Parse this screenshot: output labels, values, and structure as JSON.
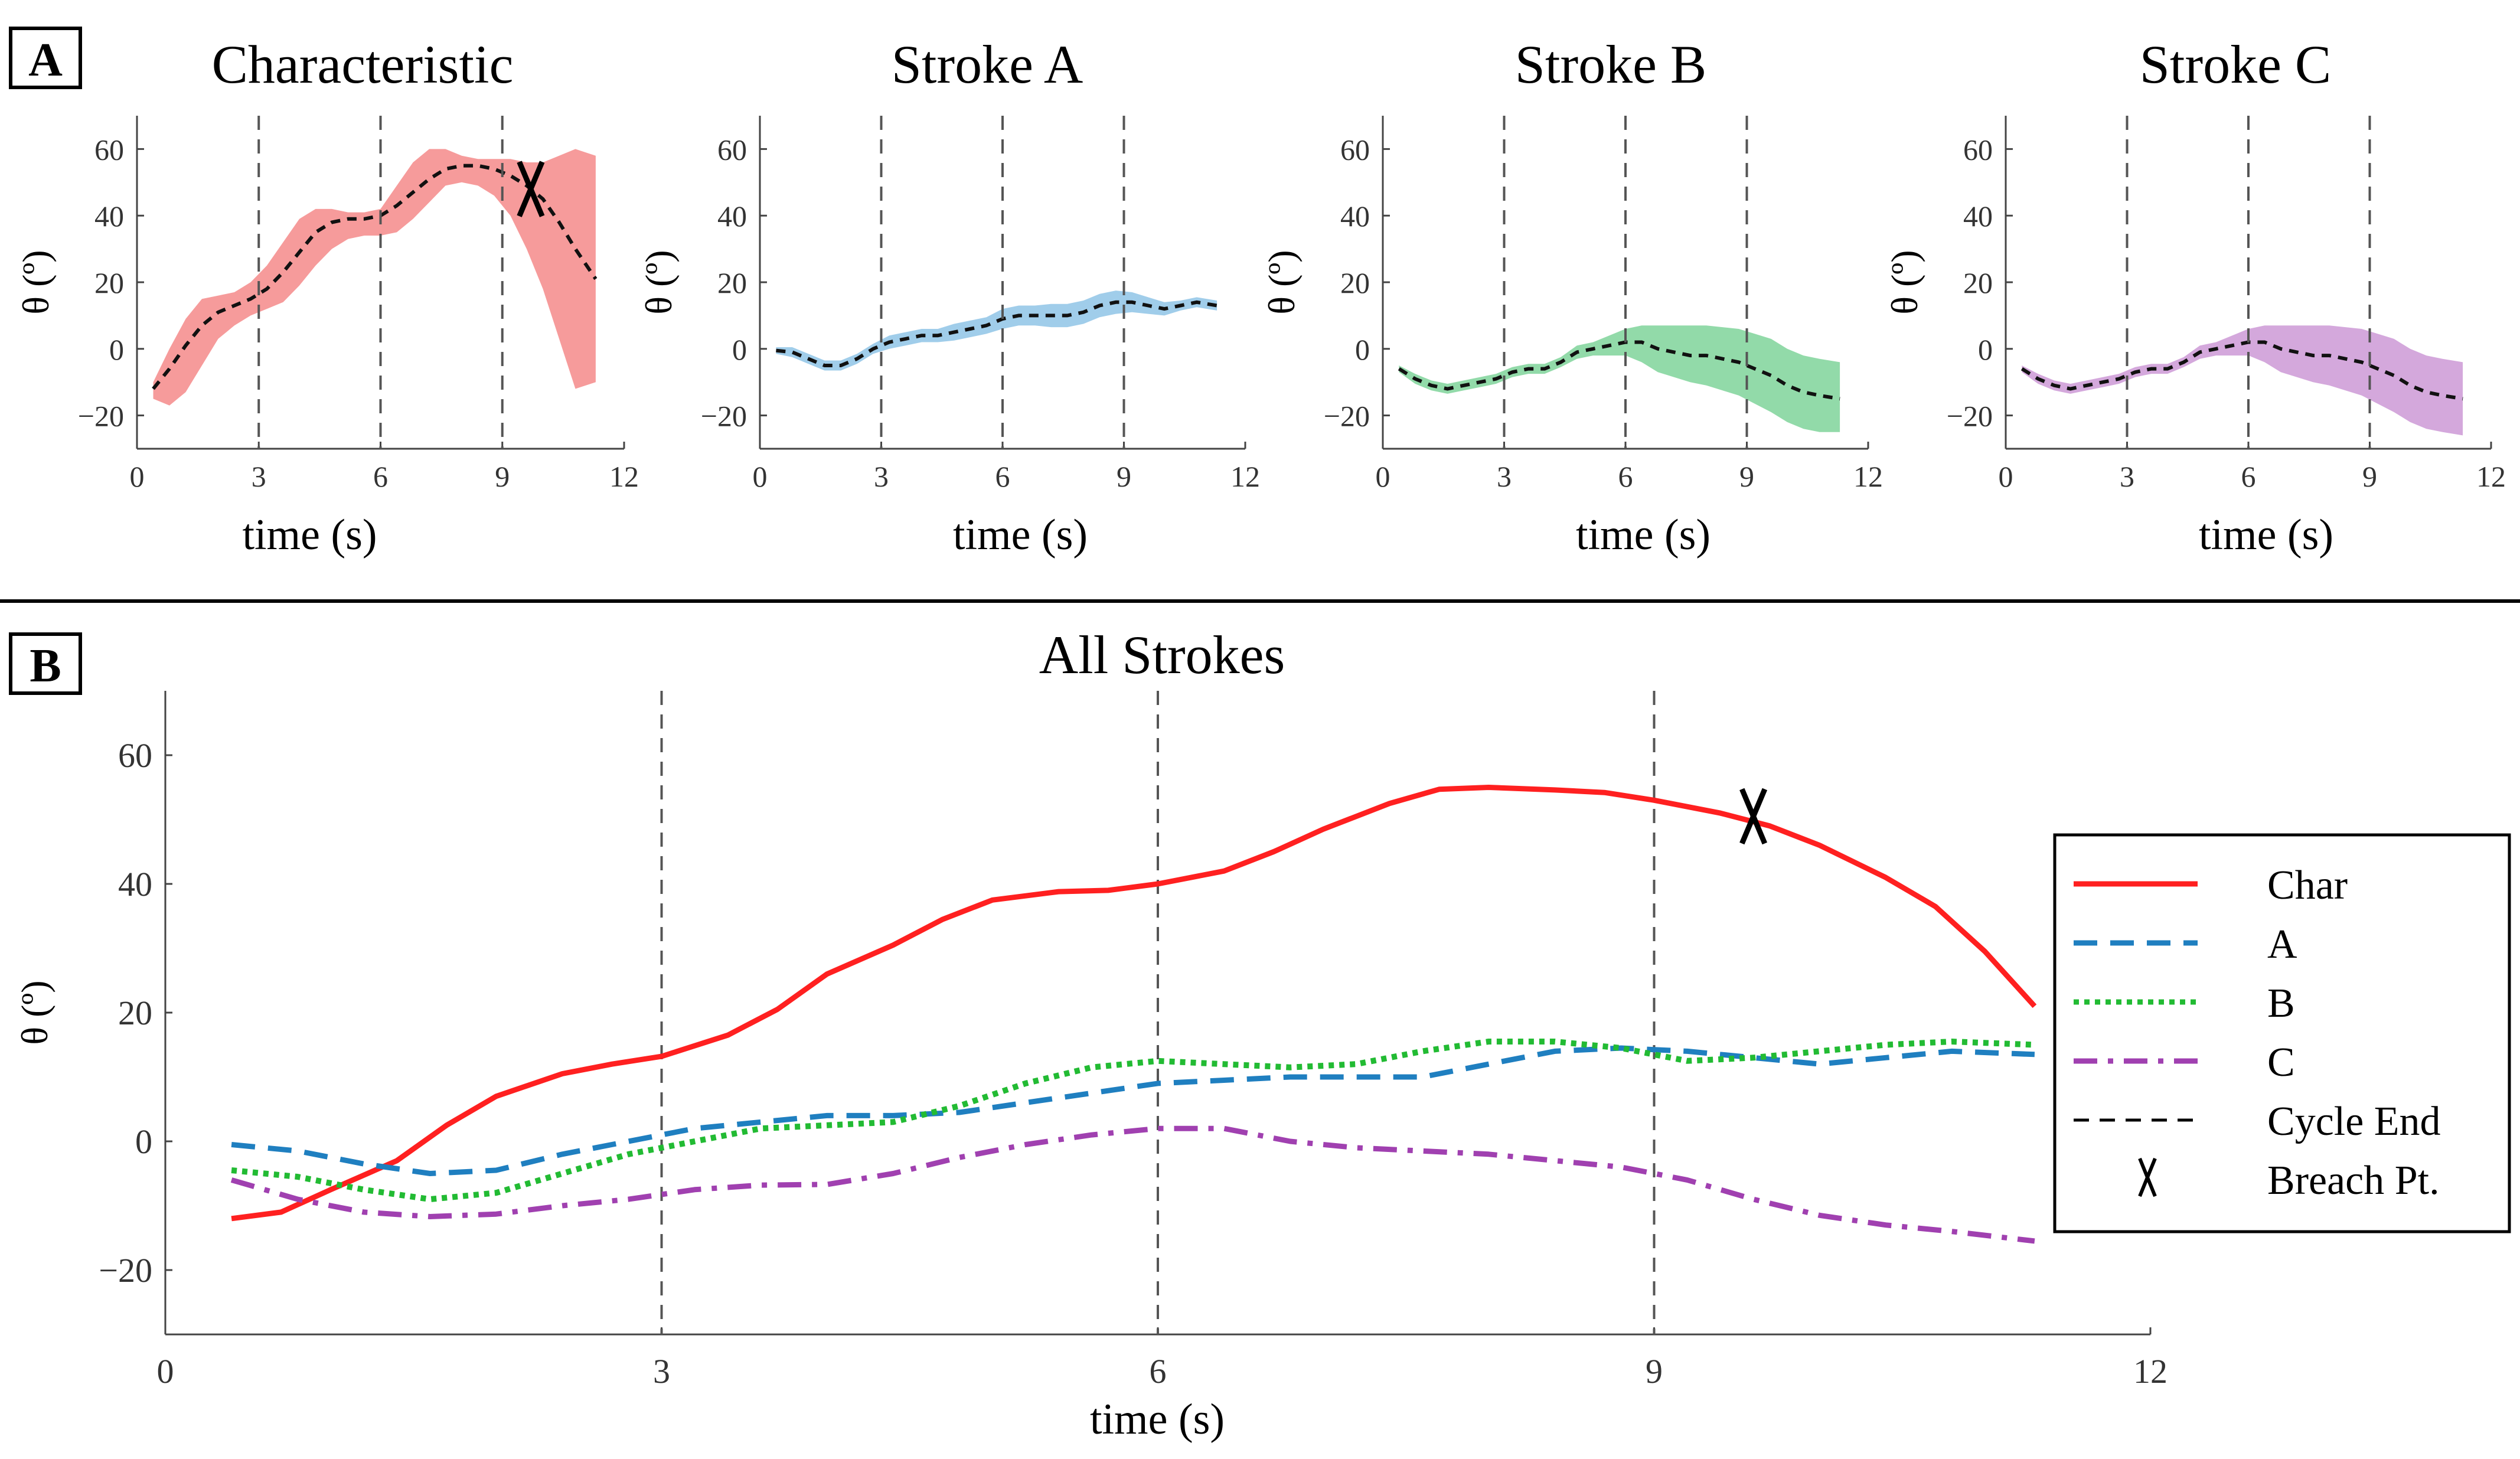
{
  "panels": {
    "a_label": "A",
    "b_label": "B"
  },
  "colors": {
    "char": "#ff2020",
    "a": "#1f7fc0",
    "b": "#22bb33",
    "c": "#a040b0",
    "char_band": "#f48a8a",
    "a_band": "#8fc4e6",
    "b_band": "#7fd49a",
    "c_band": "#cc99d6",
    "cycle_end": "#555555"
  },
  "chart_data": [
    {
      "type": "line",
      "title": "Characteristic",
      "xlabel": "time (s)",
      "ylabel": "θ (º)",
      "xlim": [
        0,
        12
      ],
      "ylim": [
        -30,
        70
      ],
      "xticks": [
        0,
        3,
        6,
        9,
        12
      ],
      "yticks": [
        -20,
        0,
        20,
        40,
        60
      ],
      "ytick_labels": [
        "−20",
        "0",
        "20",
        "40",
        "60"
      ],
      "cycle_ends": [
        3,
        6,
        9
      ],
      "mean_line_style": "dashed",
      "x": [
        0.4,
        0.8,
        1.2,
        1.6,
        2.0,
        2.4,
        2.8,
        3.2,
        3.6,
        4.0,
        4.4,
        4.8,
        5.2,
        5.6,
        6.0,
        6.4,
        6.8,
        7.2,
        7.6,
        8.0,
        8.4,
        8.8,
        9.2,
        9.6,
        10.0,
        10.4,
        10.8,
        11.3
      ],
      "mean": [
        -12,
        -6,
        1,
        7,
        11,
        13,
        15,
        18,
        23,
        29,
        35,
        38,
        39,
        39,
        40,
        43,
        47,
        51,
        54,
        55,
        55,
        54,
        52,
        49,
        45,
        38,
        30,
        21
      ],
      "lower": [
        -15,
        -17,
        -13,
        -5,
        3,
        7,
        10,
        12,
        14,
        19,
        25,
        30,
        33,
        34,
        34,
        35,
        39,
        44,
        49,
        50,
        49,
        46,
        40,
        30,
        18,
        3,
        -12,
        -10
      ],
      "upper": [
        -10,
        0,
        9,
        15,
        16,
        17,
        20,
        25,
        32,
        39,
        42,
        42,
        41,
        41,
        42,
        49,
        56,
        60,
        60,
        58,
        57,
        57,
        57,
        56,
        56,
        58,
        60,
        58
      ],
      "breach_point": {
        "x": 9.7,
        "y": 48,
        "marker": "X"
      }
    },
    {
      "type": "line",
      "title": "Stroke A",
      "xlabel": "time (s)",
      "ylabel": "θ (º)",
      "xlim": [
        0,
        12
      ],
      "ylim": [
        -30,
        70
      ],
      "xticks": [
        0,
        3,
        6,
        9,
        12
      ],
      "yticks": [
        -20,
        0,
        20,
        40,
        60
      ],
      "ytick_labels": [
        "−20",
        "0",
        "20",
        "40",
        "60"
      ],
      "cycle_ends": [
        3,
        6,
        9
      ],
      "x": [
        0.4,
        0.8,
        1.2,
        1.6,
        2.0,
        2.4,
        2.8,
        3.2,
        3.6,
        4.0,
        4.4,
        4.8,
        5.2,
        5.6,
        6.0,
        6.4,
        6.8,
        7.2,
        7.6,
        8.0,
        8.4,
        8.8,
        9.2,
        9.6,
        10.0,
        10.4,
        10.8,
        11.3
      ],
      "mean": [
        -0.5,
        -1,
        -3,
        -5,
        -5,
        -3,
        0,
        2,
        3,
        4,
        4,
        5,
        6,
        7,
        9,
        10,
        10,
        10,
        10,
        11,
        13,
        14,
        14,
        13,
        12,
        13,
        14,
        13
      ],
      "lower": [
        -1.5,
        -2.5,
        -4.5,
        -6.5,
        -6.5,
        -4.5,
        -1.5,
        0,
        1,
        2,
        2,
        2.5,
        3.5,
        4.5,
        6,
        7,
        7,
        6.5,
        6.5,
        7.5,
        9.5,
        10.5,
        11,
        10.5,
        10,
        11.5,
        12.5,
        11.5
      ],
      "upper": [
        0.5,
        0.5,
        -1.5,
        -3.5,
        -3.5,
        -1.5,
        1.5,
        4,
        5,
        6,
        6,
        7.5,
        8.5,
        9.5,
        12,
        13,
        13,
        13.5,
        13.5,
        14.5,
        16.5,
        17.5,
        17,
        15.5,
        14,
        14.5,
        15.5,
        14.5
      ]
    },
    {
      "type": "line",
      "title": "Stroke B",
      "xlabel": "time (s)",
      "ylabel": "θ (º)",
      "xlim": [
        0,
        12
      ],
      "ylim": [
        -30,
        70
      ],
      "xticks": [
        0,
        3,
        6,
        9,
        12
      ],
      "yticks": [
        -20,
        0,
        20,
        40,
        60
      ],
      "ytick_labels": [
        "−20",
        "0",
        "20",
        "40",
        "60"
      ],
      "cycle_ends": [
        3,
        6,
        9
      ],
      "x": [
        0.4,
        0.8,
        1.2,
        1.6,
        2.0,
        2.4,
        2.8,
        3.2,
        3.6,
        4.0,
        4.4,
        4.8,
        5.2,
        5.6,
        6.0,
        6.4,
        6.8,
        7.2,
        7.6,
        8.0,
        8.4,
        8.8,
        9.2,
        9.6,
        10.0,
        10.4,
        10.8,
        11.3
      ],
      "mean": [
        -6,
        -9,
        -11,
        -12,
        -11,
        -10,
        -9,
        -7,
        -6,
        -6,
        -4,
        -1,
        0,
        1,
        2,
        2,
        0,
        -1,
        -2,
        -2,
        -3,
        -4,
        -6,
        -8,
        -11,
        -13,
        -14,
        -15
      ],
      "lower": [
        -7,
        -10.5,
        -12.5,
        -13.5,
        -12.5,
        -11.5,
        -10.5,
        -8.5,
        -7.5,
        -7.5,
        -5.5,
        -3,
        -2,
        -2,
        -2,
        -4,
        -7,
        -8.5,
        -10,
        -11,
        -12.5,
        -14,
        -16.5,
        -19,
        -22,
        -24,
        -25,
        -25
      ],
      "upper": [
        -5,
        -7.5,
        -9.5,
        -10.5,
        -9.5,
        -8.5,
        -7.5,
        -5.5,
        -4.5,
        -4.5,
        -2.5,
        1,
        2,
        4,
        6,
        7,
        7,
        7,
        7,
        7,
        6.5,
        6,
        4.5,
        3,
        0,
        -2,
        -3,
        -4
      ]
    },
    {
      "type": "line",
      "title": "Stroke C",
      "xlabel": "time (s)",
      "ylabel": "θ (º)",
      "xlim": [
        0,
        12
      ],
      "ylim": [
        -30,
        70
      ],
      "xticks": [
        0,
        3,
        6,
        9,
        12
      ],
      "yticks": [
        -20,
        0,
        20,
        40,
        60
      ],
      "ytick_labels": [
        "−20",
        "0",
        "20",
        "40",
        "60"
      ],
      "cycle_ends": [
        3,
        6,
        9
      ],
      "x": [
        0.4,
        0.8,
        1.2,
        1.6,
        2.0,
        2.4,
        2.8,
        3.2,
        3.6,
        4.0,
        4.4,
        4.8,
        5.2,
        5.6,
        6.0,
        6.4,
        6.8,
        7.2,
        7.6,
        8.0,
        8.4,
        8.8,
        9.2,
        9.6,
        10.0,
        10.4,
        10.8,
        11.3
      ],
      "mean": [
        -6,
        -9,
        -11,
        -12,
        -11,
        -10,
        -9,
        -7,
        -6,
        -6,
        -4,
        -1,
        0,
        1,
        2,
        2,
        0,
        -1,
        -2,
        -2,
        -3,
        -4,
        -6,
        -8,
        -11,
        -13,
        -14,
        -15
      ],
      "lower": [
        -7,
        -10.5,
        -12.5,
        -13.5,
        -12.5,
        -11.5,
        -10.5,
        -8.5,
        -7.5,
        -7.5,
        -5.5,
        -3,
        -2,
        -2,
        -2,
        -4,
        -7,
        -8.5,
        -10,
        -11,
        -12.5,
        -14,
        -16.5,
        -19,
        -22,
        -24,
        -25,
        -26
      ],
      "upper": [
        -5,
        -7.5,
        -9.5,
        -10.5,
        -9.5,
        -8.5,
        -7.5,
        -5.5,
        -4.5,
        -4.5,
        -2.5,
        1,
        2,
        4,
        6,
        7,
        7,
        7,
        7,
        7,
        6.5,
        6,
        4.5,
        3,
        0,
        -2,
        -3,
        -4
      ]
    },
    {
      "type": "line",
      "title": "All Strokes",
      "xlabel": "time (s)",
      "ylabel": "θ (º)",
      "xlim": [
        0,
        12
      ],
      "ylim": [
        -30,
        70
      ],
      "xticks": [
        0,
        3,
        6,
        9,
        12
      ],
      "yticks": [
        -20,
        0,
        20,
        40,
        60
      ],
      "ytick_labels": [
        "−20",
        "0",
        "20",
        "40",
        "60"
      ],
      "cycle_ends": [
        3,
        6,
        9
      ],
      "legend_position": "right",
      "series": [
        {
          "name": "Char",
          "style": "solid",
          "x": [
            0.4,
            0.7,
            1.0,
            1.4,
            1.7,
            2.0,
            2.4,
            2.7,
            3.0,
            3.4,
            3.7,
            4.0,
            4.4,
            4.7,
            5.0,
            5.4,
            5.7,
            6.0,
            6.4,
            6.7,
            7.0,
            7.4,
            7.7,
            8.0,
            8.4,
            8.7,
            9.0,
            9.4,
            9.7,
            10.0,
            10.4,
            10.7,
            11.0,
            11.3
          ],
          "values": [
            -12,
            -11,
            -7.5,
            -3,
            2.5,
            7,
            10.5,
            12,
            13.2,
            16.5,
            20.5,
            26,
            30.5,
            34.5,
            37.5,
            38.8,
            39,
            40,
            42,
            45,
            48.5,
            52.5,
            54.7,
            55,
            54.6,
            54.2,
            53,
            51,
            49,
            46,
            41,
            36.5,
            29.5,
            21
          ]
        },
        {
          "name": "A",
          "style": "dashed",
          "x": [
            0.4,
            0.8,
            1.2,
            1.6,
            2.0,
            2.4,
            2.8,
            3.2,
            3.6,
            4.0,
            4.4,
            4.8,
            5.2,
            5.6,
            6.0,
            6.4,
            6.8,
            7.2,
            7.6,
            8.0,
            8.4,
            8.8,
            9.2,
            9.6,
            10.0,
            10.4,
            10.8,
            11.3
          ],
          "values": [
            -0.5,
            -1.5,
            -3.5,
            -5,
            -4.5,
            -2,
            0,
            2,
            3,
            4,
            4,
            4.5,
            6,
            7.5,
            9,
            9.5,
            10,
            10,
            10,
            12,
            14,
            14.5,
            14,
            13,
            12,
            13,
            14,
            13.5
          ]
        },
        {
          "name": "B",
          "style": "dotted",
          "x": [
            0.4,
            0.8,
            1.2,
            1.6,
            2.0,
            2.4,
            2.8,
            3.2,
            3.6,
            4.0,
            4.4,
            4.8,
            5.2,
            5.6,
            6.0,
            6.4,
            6.8,
            7.2,
            7.6,
            8.0,
            8.4,
            8.8,
            9.2,
            9.6,
            10.0,
            10.4,
            10.8,
            11.3
          ],
          "values": [
            -4.5,
            -5.5,
            -7.5,
            -9,
            -8,
            -5,
            -2,
            0,
            2,
            2.5,
            3,
            5.5,
            9,
            11.5,
            12.5,
            12,
            11.5,
            12,
            14,
            15.5,
            15.5,
            14.5,
            12.5,
            13,
            14,
            15,
            15.5,
            15
          ]
        },
        {
          "name": "C",
          "style": "dashdot",
          "x": [
            0.4,
            0.8,
            1.2,
            1.6,
            2.0,
            2.4,
            2.8,
            3.2,
            3.6,
            4.0,
            4.4,
            4.8,
            5.2,
            5.6,
            6.0,
            6.4,
            6.8,
            7.2,
            7.6,
            8.0,
            8.4,
            8.8,
            9.2,
            9.6,
            10.0,
            10.4,
            10.8,
            11.3
          ],
          "values": [
            -6,
            -9,
            -11,
            -11.7,
            -11.3,
            -10,
            -9,
            -7.5,
            -6.8,
            -6.7,
            -5,
            -2.5,
            -0.5,
            1,
            2,
            2,
            0,
            -1,
            -1.5,
            -2,
            -3,
            -4,
            -6,
            -9,
            -11.5,
            -13,
            -14,
            -15.5
          ]
        },
        {
          "name": "Cycle End",
          "style": "dashed",
          "vertical_x": [
            3,
            6,
            9
          ]
        },
        {
          "name": "Breach Pt.",
          "style": "marker",
          "x": [
            9.6
          ],
          "values": [
            50.5
          ],
          "marker": "X"
        }
      ]
    }
  ]
}
